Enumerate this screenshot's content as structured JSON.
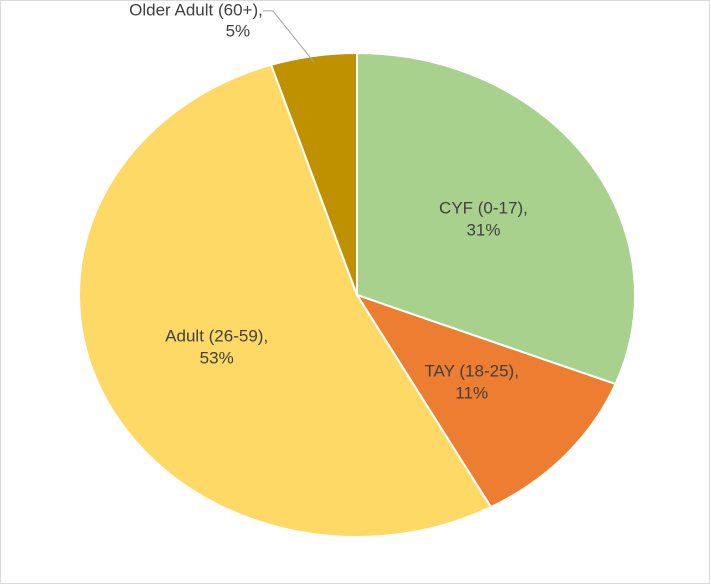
{
  "chart_data": {
    "type": "pie",
    "categories": [
      "CYF (0-17),",
      "TAY (18-25),",
      "Adult (26-59),",
      "Older Adult (60+),"
    ],
    "values": [
      31,
      11,
      53,
      5
    ],
    "value_labels": [
      "31%",
      "11%",
      "53%",
      "5%"
    ],
    "colors": [
      "#a9d18e",
      "#ed7d31",
      "#ffd966",
      "#bf9000"
    ]
  }
}
